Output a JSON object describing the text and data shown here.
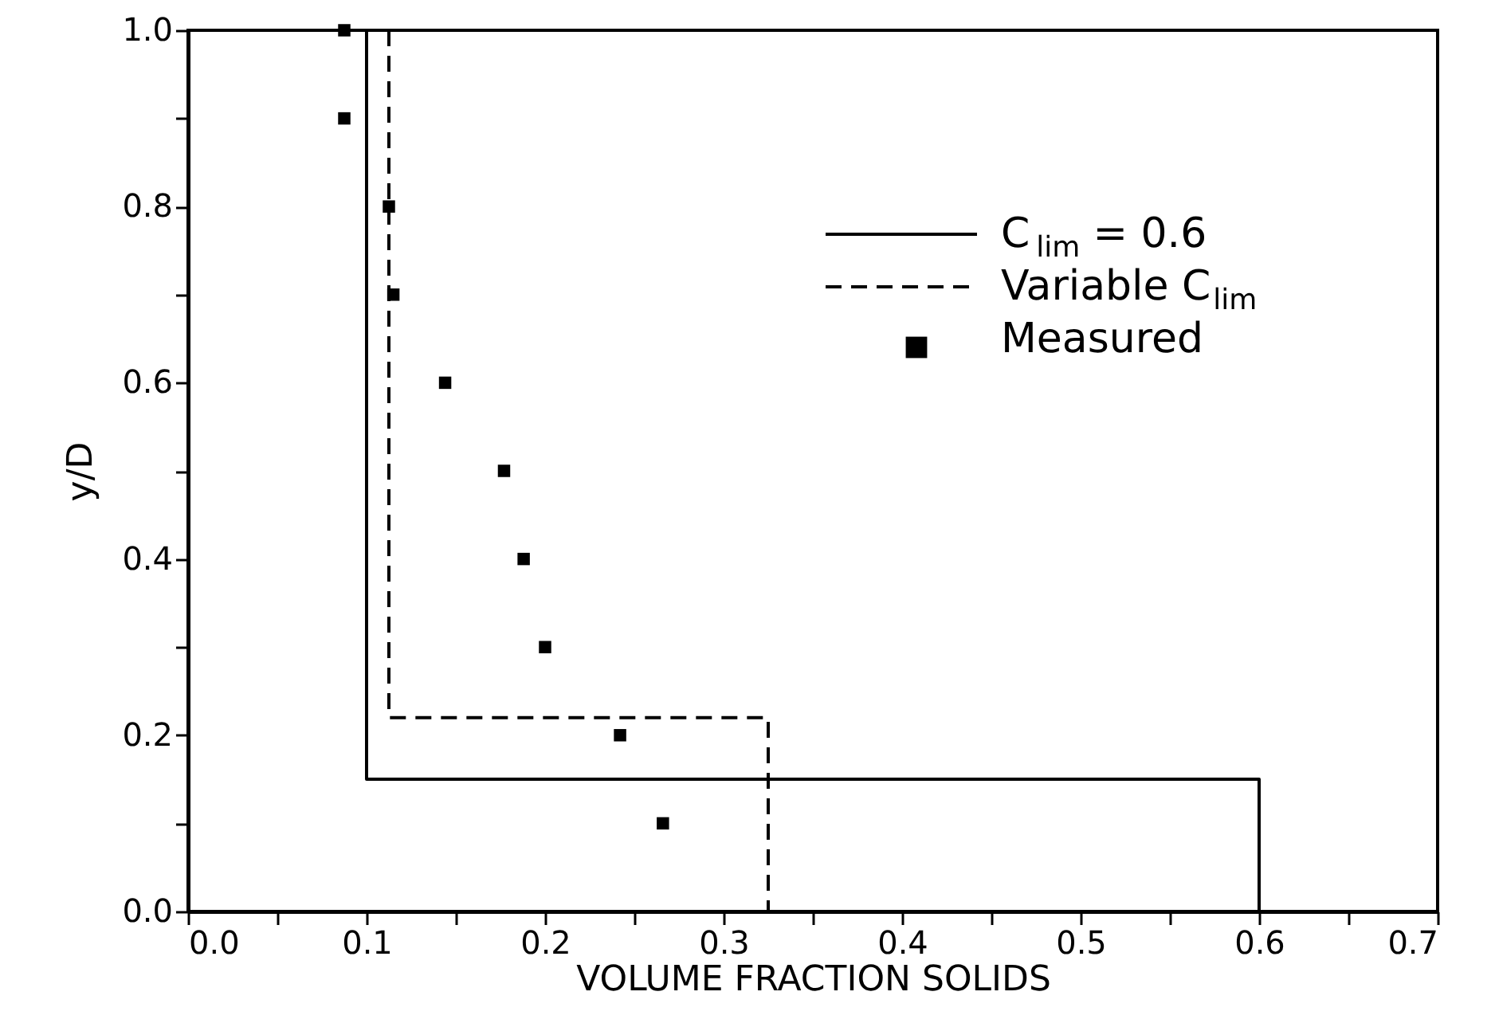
{
  "chart_data": {
    "type": "line",
    "xlabel": "VOLUME FRACTION SOLIDS",
    "ylabel": "y/D",
    "series": [
      {
        "name": "C$_{lim}$ = 0.6",
        "color": "#000000",
        "line_style": "solid",
        "x": [
          0.1,
          0.1,
          0.6,
          0.6
        ],
        "values": [
          1.0,
          0.15,
          0.15,
          0.0
        ]
      },
      {
        "name": "Variable C$_{lim}$",
        "color": "#000000",
        "line_style": "dashed",
        "x": [
          0.1125,
          0.1125,
          0.325,
          0.325
        ],
        "values": [
          1.0,
          0.22,
          0.22,
          0.0
        ]
      },
      {
        "name": "Measured",
        "type": "scatter",
        "color": "#000000",
        "marker": "square",
        "x": [
          0.0875,
          0.0875,
          0.1125,
          0.115,
          0.144,
          0.177,
          0.188,
          0.2,
          0.242,
          0.266
        ],
        "values": [
          1.0,
          0.9,
          0.8,
          0.7,
          0.6,
          0.5,
          0.4,
          0.3,
          0.2,
          0.1
        ]
      }
    ],
    "xlim": [
      0,
      0.7
    ],
    "ylim": [
      0,
      1.0
    ],
    "xticks": [
      {
        "value": 0,
        "label": "0.0"
      },
      {
        "value": 0.05,
        "label": null
      },
      0.1,
      {
        "value": 0.15,
        "label": null
      },
      0.2,
      {
        "value": 0.25,
        "label": null
      },
      0.3,
      {
        "value": 0.35,
        "label": null
      },
      0.4,
      {
        "value": 0.45,
        "label": null
      },
      0.5,
      {
        "value": 0.55,
        "label": null
      },
      0.6,
      {
        "value": 0.65,
        "label": null
      },
      0.7
    ],
    "yticks": [
      {
        "value": 0,
        "label": "0.0"
      },
      {
        "value": 0.1,
        "label": null
      },
      0.2,
      {
        "value": 0.3,
        "label": null
      },
      0.4,
      {
        "value": 0.5,
        "label": null
      },
      0.6,
      {
        "value": 0.7,
        "label": null
      },
      0.8,
      {
        "value": 0.9,
        "label": null
      },
      {
        "value": 1,
        "label": "1.0"
      }
    ],
    "grid": false,
    "legend": "top right"
  }
}
